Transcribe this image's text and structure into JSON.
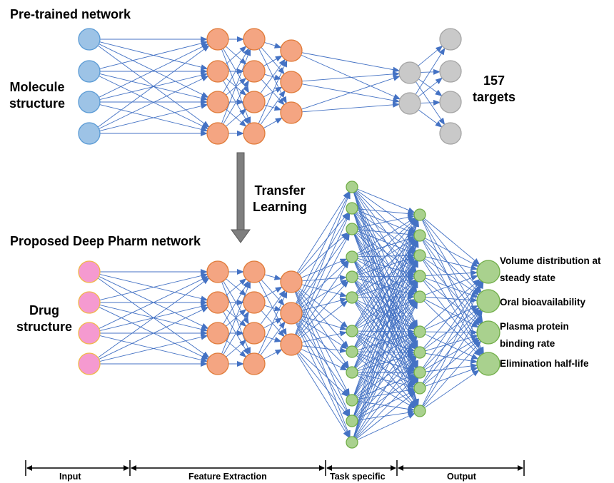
{
  "labels": {
    "pretrained_title": "Pre-trained network",
    "molecule_line1": "Molecule",
    "molecule_line2": "structure",
    "targets_count": "157",
    "targets_word": "targets",
    "transfer_line1": "Transfer",
    "transfer_line2": "Learning",
    "proposed_title": "Proposed Deep Pharm network",
    "drug_line1": "Drug",
    "drug_line2": "structure"
  },
  "outputs": [
    "Volume distribution at",
    "steady state",
    "Oral bioavailability",
    "Plasma protein",
    "binding rate",
    "Elimination half-life"
  ],
  "axis_sections": [
    "Input",
    "Feature Extraction",
    "Task specific",
    "Output"
  ],
  "colors": {
    "input_blue": "#9dc3e6",
    "input_blue_stroke": "#5b9bd5",
    "hidden_orange": "#f4a582",
    "hidden_orange_stroke": "#e07b39",
    "output_gray": "#c9c9c9",
    "output_gray_stroke": "#a5a5a5",
    "input_pink": "#f59ad0",
    "input_pink_stroke": "#f0b74a",
    "task_green": "#a9d18e",
    "task_green_stroke": "#70ad47",
    "edge_blue": "#4472c4",
    "arrow_gray": "#7f7f7f"
  }
}
